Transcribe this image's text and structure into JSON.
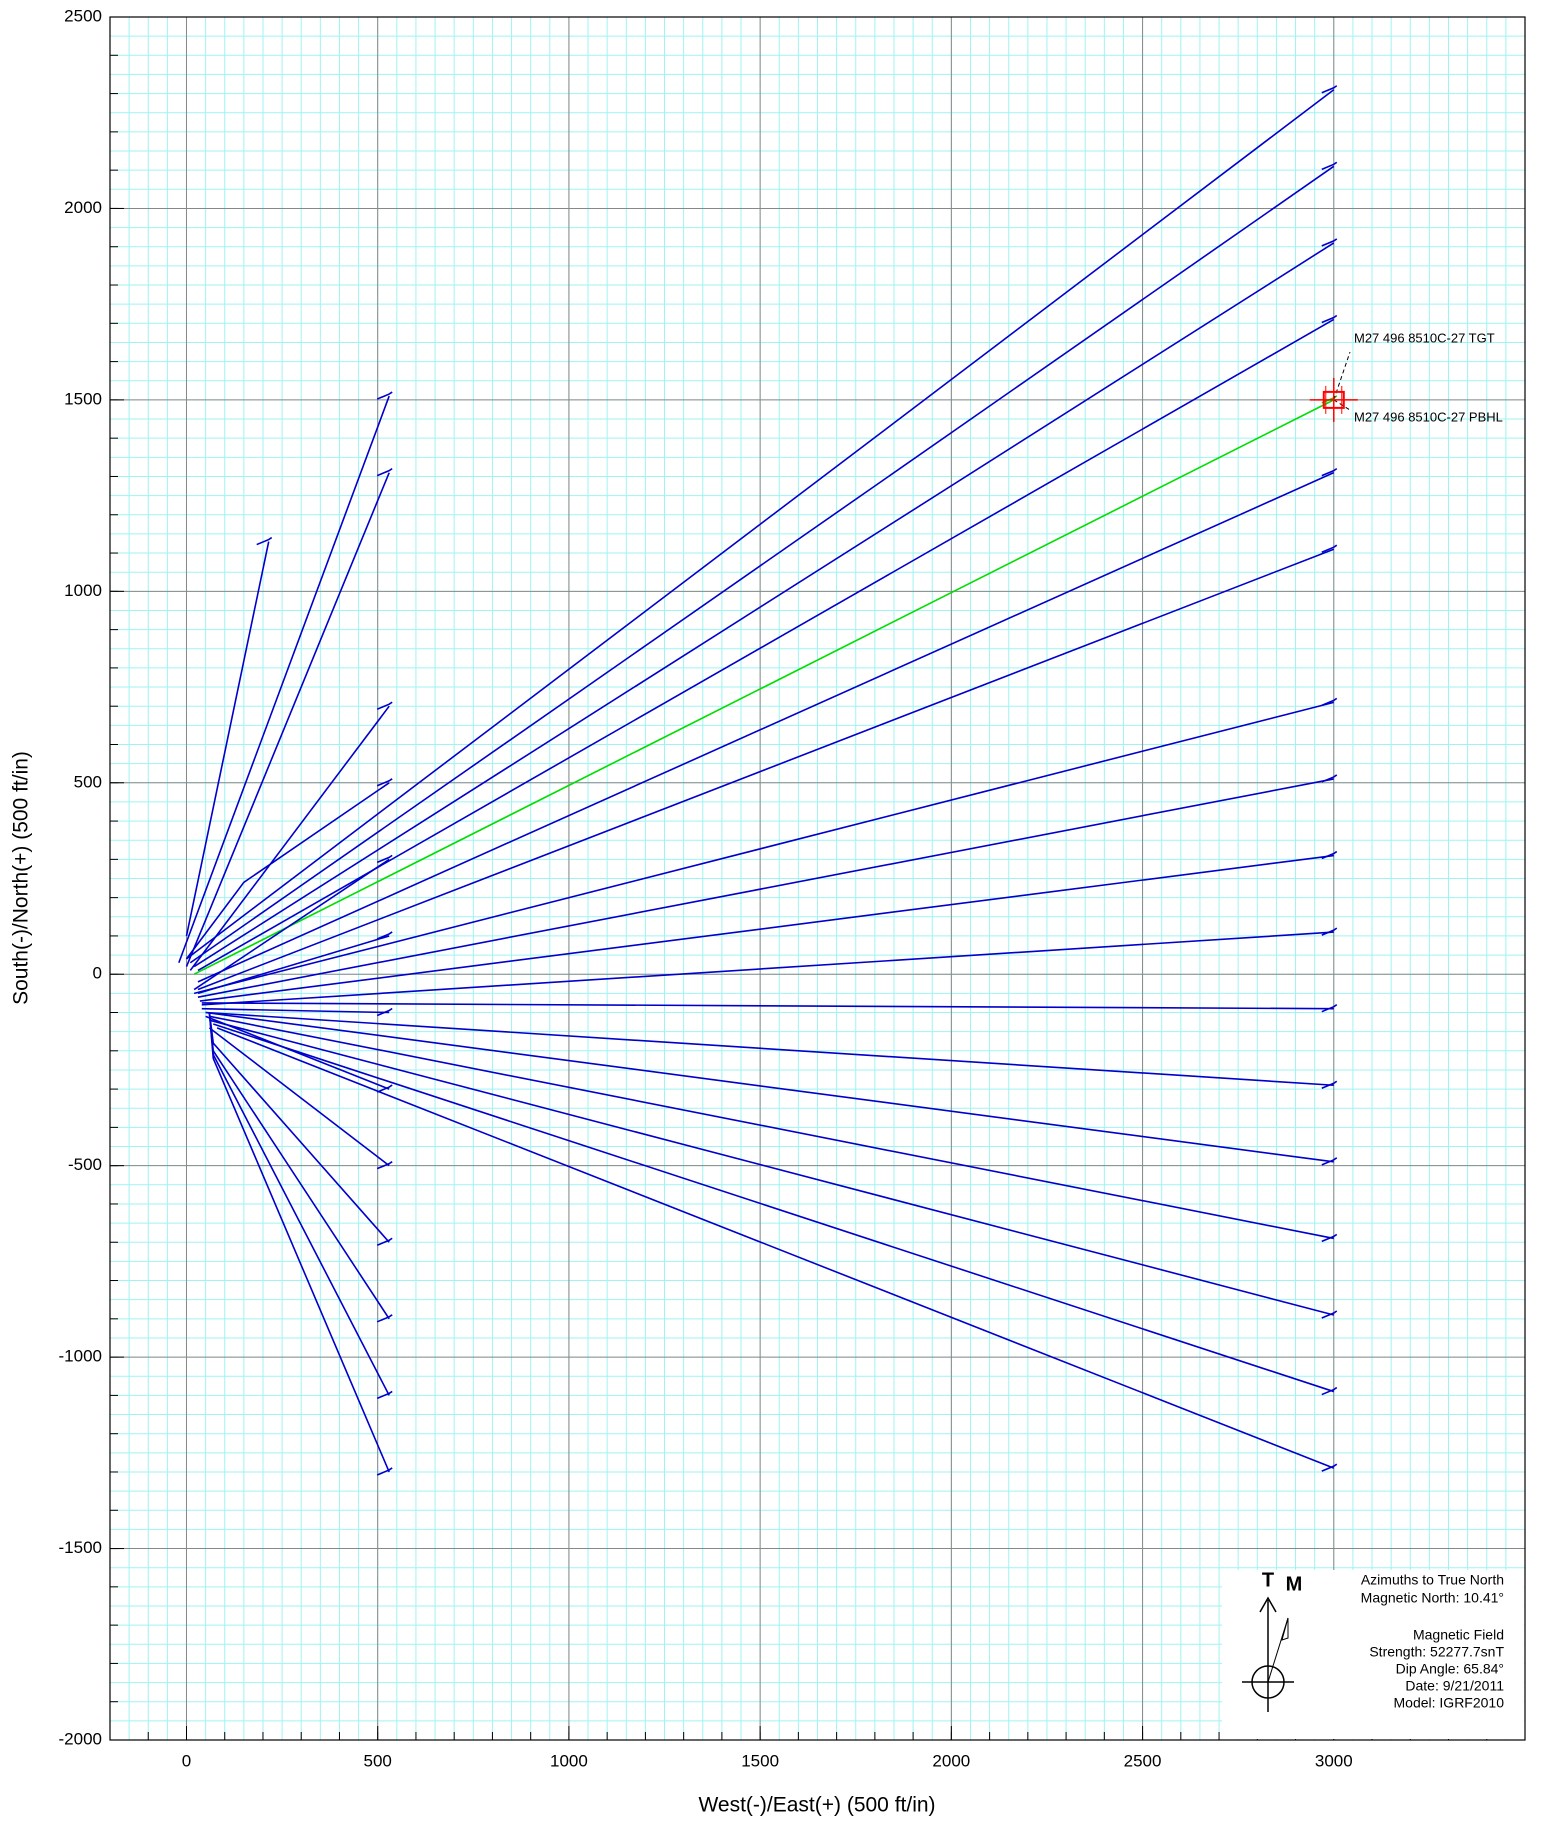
{
  "chart_data": {
    "type": "line",
    "x_label": "West(-)/East(+) (500 ft/in)",
    "y_label": "South(-)/North(+) (500 ft/in)",
    "xlim": [
      -200,
      3500
    ],
    "ylim": [
      -2000,
      2500
    ],
    "xticks": [
      0,
      500,
      1000,
      1500,
      2000,
      2500,
      3000
    ],
    "yticks": [
      -2000,
      -1500,
      -1000,
      -500,
      0,
      500,
      1000,
      1500,
      2000,
      2500
    ],
    "grid": true,
    "series": [
      {
        "color": "#0000cc",
        "x": [
          0,
          3000
        ],
        "y": [
          40,
          2310
        ]
      },
      {
        "color": "#0000cc",
        "x": [
          10,
          3000
        ],
        "y": [
          30,
          2110
        ]
      },
      {
        "color": "#0000cc",
        "x": [
          20,
          3000
        ],
        "y": [
          20,
          1910
        ]
      },
      {
        "color": "#0000cc",
        "x": [
          30,
          3000
        ],
        "y": [
          10,
          1710
        ]
      },
      {
        "color": "#00dd00",
        "x": [
          20,
          3000
        ],
        "y": [
          0,
          1500
        ]
      },
      {
        "color": "#0000cc",
        "x": [
          30,
          3000
        ],
        "y": [
          -20,
          1310
        ]
      },
      {
        "color": "#0000cc",
        "x": [
          30,
          3000
        ],
        "y": [
          -40,
          1110
        ]
      },
      {
        "color": "#0000cc",
        "x": [
          20,
          3000
        ],
        "y": [
          -50,
          710
        ]
      },
      {
        "color": "#0000cc",
        "x": [
          30,
          3000
        ],
        "y": [
          -60,
          510
        ]
      },
      {
        "color": "#0000cc",
        "x": [
          35,
          3000
        ],
        "y": [
          -70,
          310
        ]
      },
      {
        "color": "#0000cc",
        "x": [
          40,
          3000
        ],
        "y": [
          -80,
          110
        ]
      },
      {
        "color": "#0000cc",
        "x": [
          40,
          3000
        ],
        "y": [
          -75,
          -90
        ]
      },
      {
        "color": "#0000cc",
        "x": [
          50,
          3000
        ],
        "y": [
          -100,
          -290
        ]
      },
      {
        "color": "#0000cc",
        "x": [
          50,
          3000
        ],
        "y": [
          -100,
          -490
        ]
      },
      {
        "color": "#0000cc",
        "x": [
          60,
          3000
        ],
        "y": [
          -110,
          -690
        ]
      },
      {
        "color": "#0000cc",
        "x": [
          60,
          3000
        ],
        "y": [
          -120,
          -890
        ]
      },
      {
        "color": "#0000cc",
        "x": [
          70,
          3000
        ],
        "y": [
          -130,
          -1090
        ]
      },
      {
        "color": "#0000cc",
        "x": [
          80,
          3000
        ],
        "y": [
          -140,
          -1290
        ]
      },
      {
        "color": "#0000cc",
        "x": [
          -20,
          530
        ],
        "y": [
          30,
          1510
        ]
      },
      {
        "color": "#0000cc",
        "x": [
          0,
          530
        ],
        "y": [
          20,
          1310
        ]
      },
      {
        "color": "#0000cc",
        "x": [
          0,
          215
        ],
        "y": [
          100,
          1130
        ]
      },
      {
        "color": "#0000cc",
        "x": [
          10,
          530
        ],
        "y": [
          10,
          700
        ]
      },
      {
        "color": "#0000cc",
        "x": [
          0,
          150,
          530
        ],
        "y": [
          40,
          240,
          500
        ]
      },
      {
        "color": "#0000cc",
        "x": [
          20,
          530
        ],
        "y": [
          -40,
          300
        ]
      },
      {
        "color": "#0000cc",
        "x": [
          30,
          530
        ],
        "y": [
          -50,
          100
        ]
      },
      {
        "color": "#0000cc",
        "x": [
          40,
          530
        ],
        "y": [
          -90,
          -100
        ]
      },
      {
        "color": "#0000cc",
        "x": [
          50,
          530
        ],
        "y": [
          -110,
          -300
        ]
      },
      {
        "color": "#0000cc",
        "x": [
          60,
          530
        ],
        "y": [
          -140,
          -500
        ]
      },
      {
        "color": "#0000cc",
        "x": [
          60,
          70,
          530
        ],
        "y": [
          -100,
          -180,
          -700
        ]
      },
      {
        "color": "#0000cc",
        "x": [
          60,
          70,
          530
        ],
        "y": [
          -100,
          -200,
          -900
        ]
      },
      {
        "color": "#0000cc",
        "x": [
          60,
          70,
          530
        ],
        "y": [
          -100,
          -210,
          -1100
        ]
      },
      {
        "color": "#0000cc",
        "x": [
          60,
          70,
          530
        ],
        "y": [
          -100,
          -220,
          -1300
        ]
      }
    ],
    "target": {
      "x": 3000,
      "y": 1500,
      "color": "#ff0000",
      "labels": [
        "M27 496 8510C-27 TGT",
        "M27 496 8510C-27 PBHL"
      ]
    },
    "north_info": {
      "true_label": "T",
      "magnetic_label": "M",
      "lines": [
        "Azimuths to True North",
        "Magnetic North: 10.41°",
        "Magnetic Field",
        "Strength: 52277.7snT",
        "Dip Angle: 65.84°",
        "Date: 9/21/2011",
        "Model: IGRF2010"
      ]
    }
  }
}
